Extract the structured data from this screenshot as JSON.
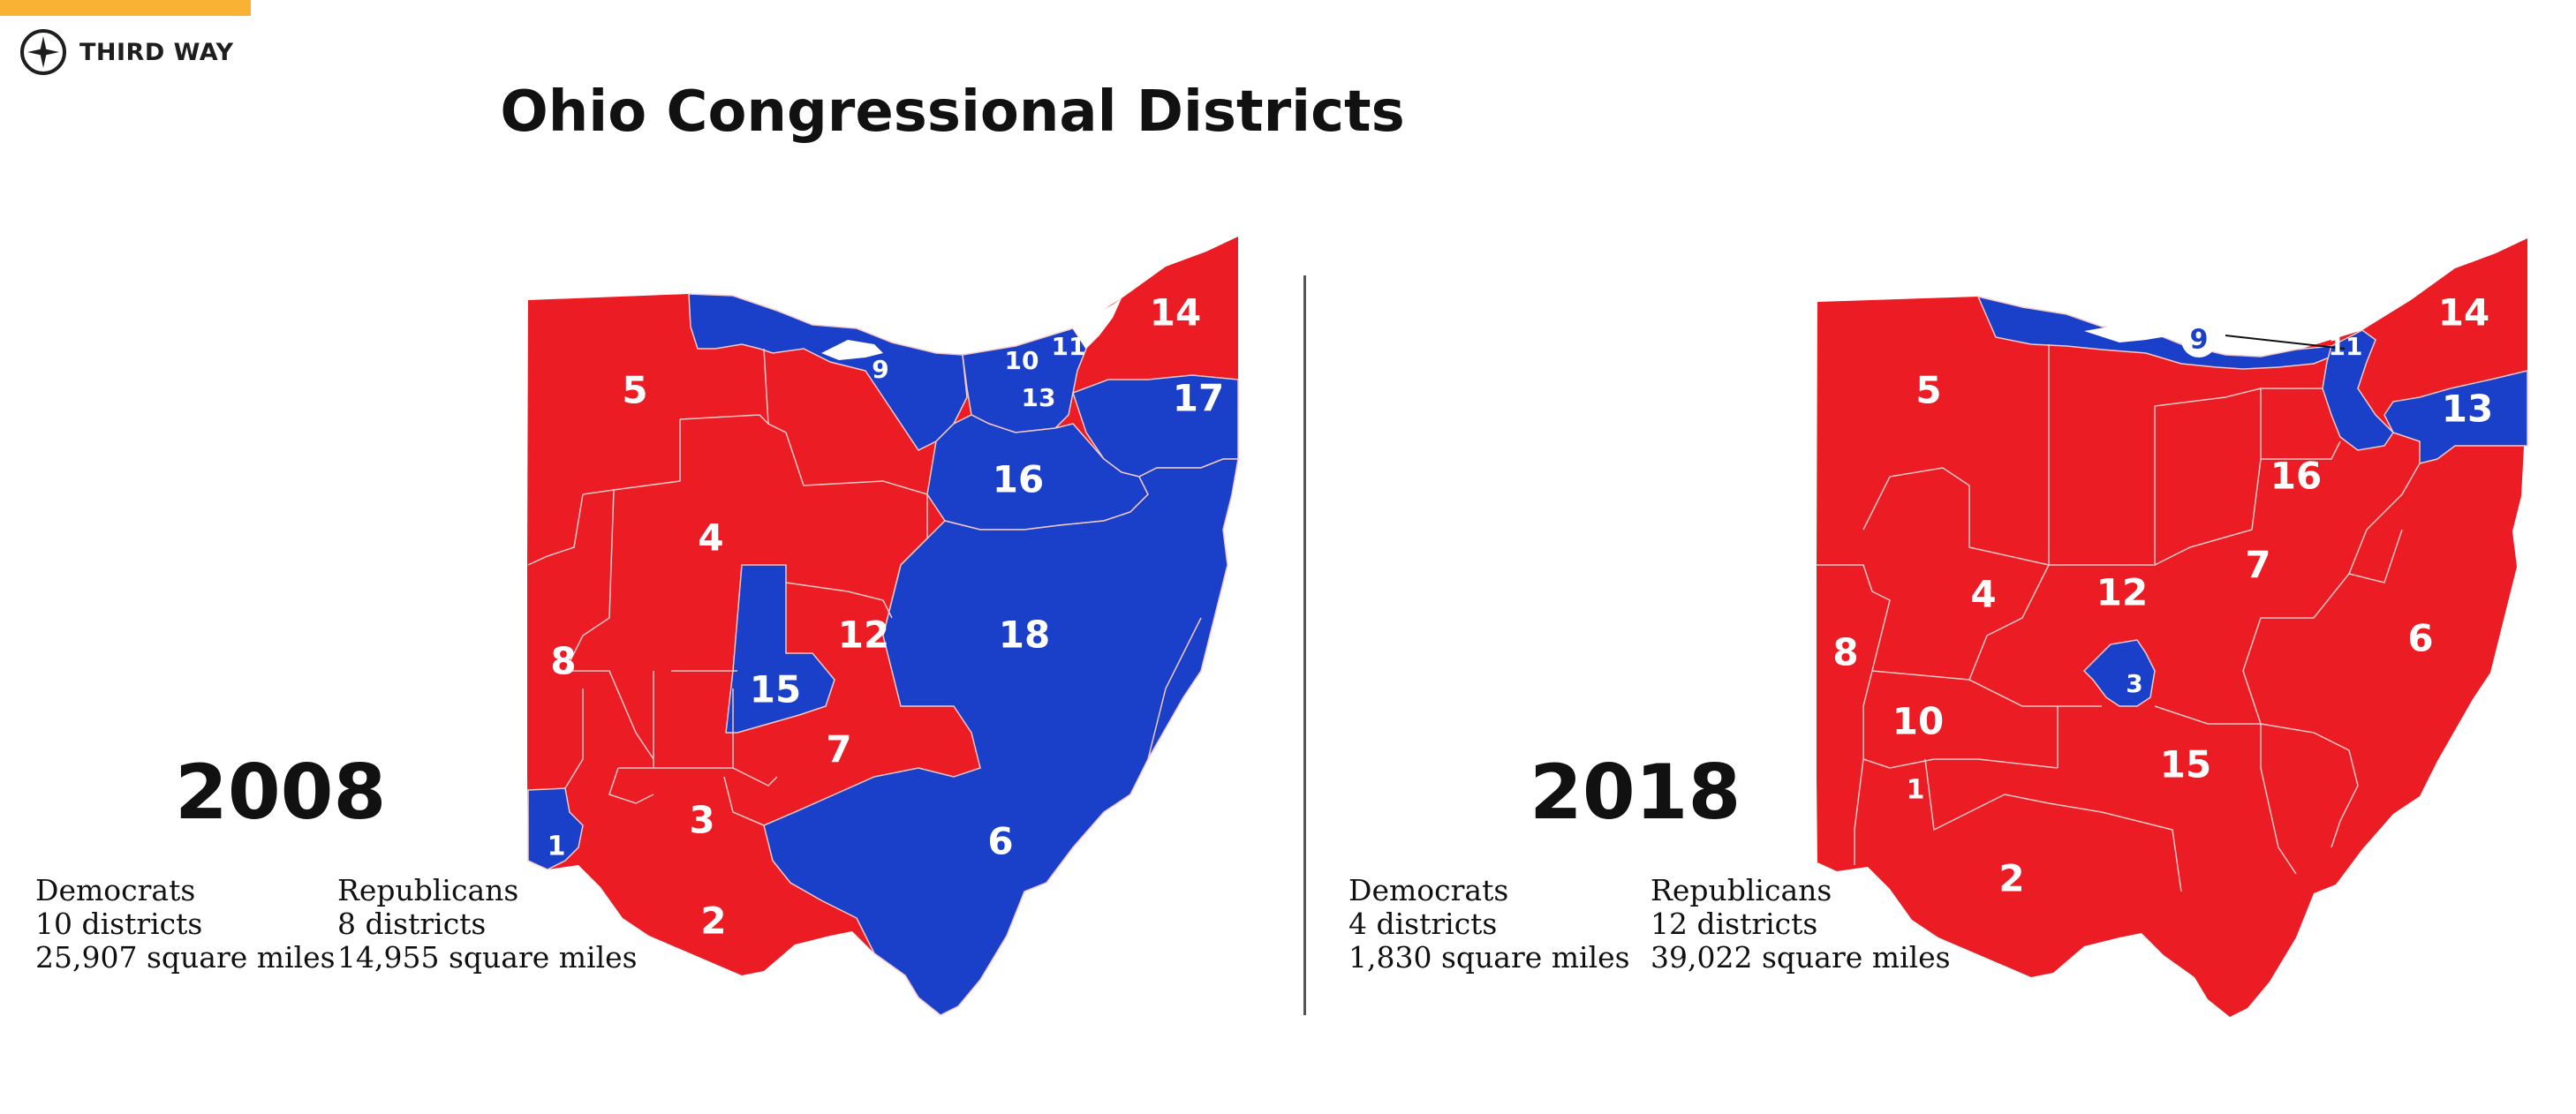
{
  "brand": {
    "name": "THIRD WAY",
    "logo_icon": "compass-icon",
    "accent": "#f9b233"
  },
  "title": "Ohio Congressional Districts",
  "colors": {
    "democrat": "#1a3fc8",
    "republican": "#ec1c24",
    "border": "#f3c9c9"
  },
  "panels": [
    {
      "year": "2008",
      "democrats": {
        "label": "Democrats",
        "districts": "10 districts",
        "area": "25,907 square miles"
      },
      "republicans": {
        "label": "Republicans",
        "districts": "8 districts",
        "area": "14,955 square miles"
      },
      "district_labels": [
        "14",
        "5",
        "9",
        "10",
        "11",
        "13",
        "17",
        "16",
        "4",
        "12",
        "18",
        "8",
        "15",
        "7",
        "1",
        "3",
        "6",
        "2"
      ]
    },
    {
      "year": "2018",
      "democrats": {
        "label": "Democrats",
        "districts": "4 districts",
        "area": "1,830 square miles"
      },
      "republicans": {
        "label": "Republicans",
        "districts": "12 districts",
        "area": "39,022 square miles"
      },
      "district_labels": [
        "14",
        "5",
        "9",
        "11",
        "13",
        "16",
        "7",
        "4",
        "12",
        "6",
        "8",
        "3",
        "10",
        "15",
        "1",
        "2"
      ]
    }
  ]
}
